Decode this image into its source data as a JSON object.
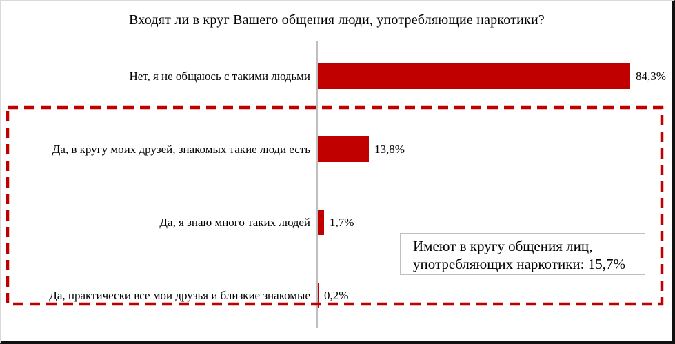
{
  "title": "Входят ли в круг Вашего общения люди, употребляющие наркотики?",
  "chart_data": {
    "type": "bar",
    "orientation": "horizontal",
    "title": "Входят ли в круг Вашего общения люди, употребляющие наркотики?",
    "categories": [
      "Нет, я не общаюсь с такими людьми",
      "Да, в кругу моих друзей, знакомых такие люди есть",
      "Да, я знаю много таких людей",
      "Да, практически все мои друзья и близкие знакомые"
    ],
    "values": [
      84.3,
      13.8,
      1.7,
      0.2
    ],
    "value_labels": [
      "84,3%",
      "13,8%",
      "1,7%",
      "0,2%"
    ],
    "xlabel": "",
    "ylabel": "",
    "xlim": [
      0,
      95
    ],
    "grid": false,
    "legend": false,
    "bar_color": "#c00000",
    "annotation": {
      "line1": "Имеют в кругу общения лиц,",
      "line2": "употребляющих наркотики: 15,7%"
    },
    "highlight": "dashed red rectangle around the three «Да» categories"
  },
  "colors": {
    "bar": "#c00000",
    "dashed_border": "#c00000",
    "axis": "#bfbfbf",
    "annotation_border": "#bfbfbf"
  }
}
